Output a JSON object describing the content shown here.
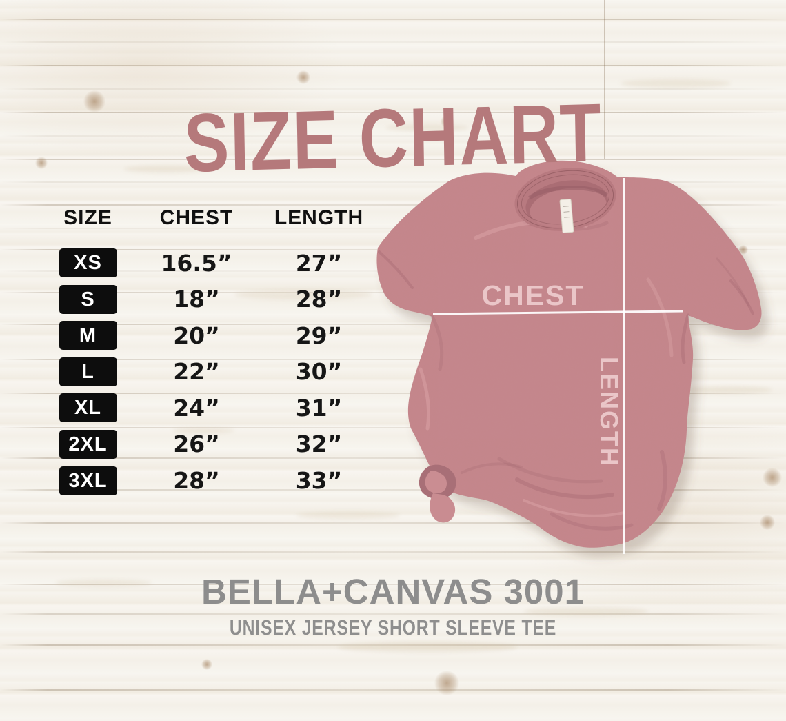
{
  "page": {
    "title": "SIZE CHART"
  },
  "table": {
    "headers": [
      "SIZE",
      "CHEST",
      "LENGTH"
    ],
    "rows": [
      {
        "size": "XS",
        "chest": "16.5”",
        "length": "27”"
      },
      {
        "size": "S",
        "chest": "18”",
        "length": "28”"
      },
      {
        "size": "M",
        "chest": "20”",
        "length": "29”"
      },
      {
        "size": "L",
        "chest": "22”",
        "length": "30”"
      },
      {
        "size": "XL",
        "chest": "24”",
        "length": "31”"
      },
      {
        "size": "2XL",
        "chest": "26”",
        "length": "32”"
      },
      {
        "size": "3XL",
        "chest": "28”",
        "length": "33”"
      }
    ]
  },
  "shirt_diagram": {
    "chest_label": "CHEST",
    "length_label": "LENGTH"
  },
  "footer": {
    "brand": "BELLA+CANVAS 3001",
    "product": "UNISEX JERSEY SHORT SLEEVE TEE"
  },
  "colors": {
    "title_rose": "#b5797b",
    "shirt_mauve": "#c5878c",
    "shirt_shadow": "#a86f77",
    "measure_line": "#ffffff",
    "measure_label_pink": "#ecc9cb",
    "badge_black": "#0d0d0d",
    "footer_gray": "#8d8d8d",
    "wood_white": "#f6f3ed"
  },
  "chart_data": {
    "type": "table",
    "title": "SIZE CHART",
    "columns": [
      "SIZE",
      "CHEST",
      "LENGTH"
    ],
    "units": "inches",
    "rows": [
      [
        "XS",
        16.5,
        27
      ],
      [
        "S",
        18,
        28
      ],
      [
        "M",
        20,
        29
      ],
      [
        "L",
        22,
        30
      ],
      [
        "XL",
        24,
        31
      ],
      [
        "2XL",
        26,
        32
      ],
      [
        "3XL",
        28,
        33
      ]
    ],
    "diagram_labels": [
      "CHEST",
      "LENGTH"
    ]
  }
}
